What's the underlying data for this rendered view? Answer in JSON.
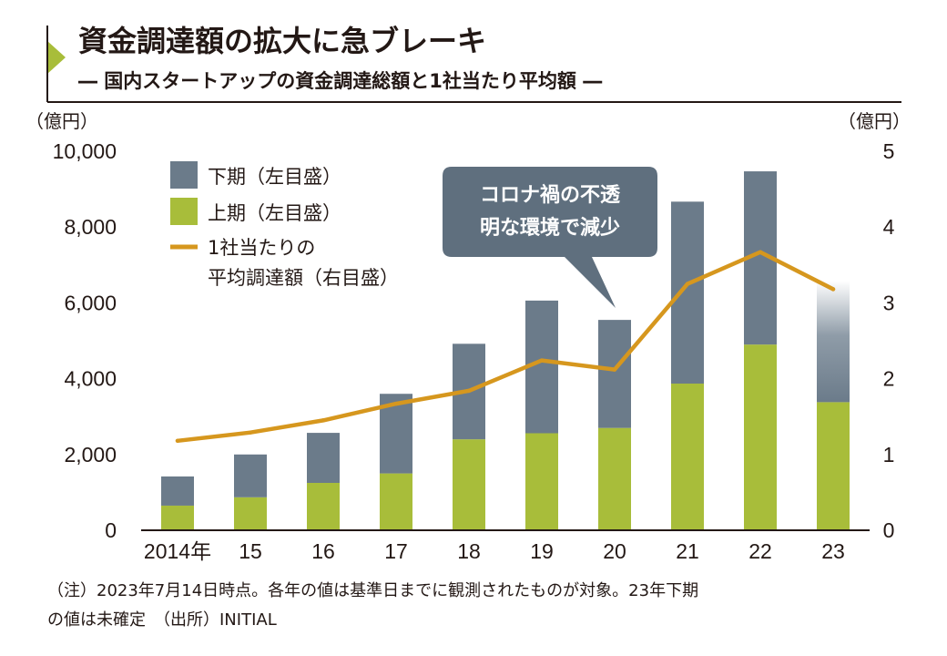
{
  "title": "資金調達額の拡大に急ブレーキ",
  "subtitle": "― 国内スタートアップの資金調達総額と1社当たり平均額 ―",
  "colors": {
    "lower_half": "#6b7b8a",
    "upper_half": "#a8bd3a",
    "line": "#d6971e",
    "callout": "#5f6f7e",
    "accent_triangle": "#a8bd3a"
  },
  "chart_data": {
    "type": "bar",
    "categories": [
      "2014年",
      "15",
      "16",
      "17",
      "18",
      "19",
      "20",
      "21",
      "22",
      "23"
    ],
    "series": [
      {
        "name": "上期（左目盛）",
        "values": [
          650,
          870,
          1250,
          1500,
          2400,
          2560,
          2700,
          3870,
          4900,
          3380
        ]
      },
      {
        "name": "下期（左目盛）",
        "values": [
          770,
          1130,
          1320,
          2100,
          2520,
          3500,
          2850,
          4800,
          4570,
          3200
        ]
      }
    ],
    "line_series": {
      "name": "1社当たりの平均調達額（右目盛）",
      "values": [
        1.18,
        1.29,
        1.45,
        1.67,
        1.84,
        2.24,
        2.12,
        3.25,
        3.67,
        3.18
      ]
    },
    "y_left": {
      "unit": "（億円）",
      "ylim": [
        0,
        10000
      ],
      "ticks": [
        "0",
        "2,000",
        "4,000",
        "6,000",
        "8,000",
        "10,000"
      ]
    },
    "y_right": {
      "unit": "（億円）",
      "ylim": [
        0,
        5
      ],
      "ticks": [
        "0",
        "1",
        "2",
        "3",
        "4",
        "5"
      ]
    },
    "legend": {
      "placement": "top-left",
      "items": [
        "下期（左目盛）",
        "上期（左目盛）",
        "1社当たりの",
        "平均調達額（右目盛）"
      ]
    },
    "annotation": {
      "lines": [
        "コロナ禍の不透",
        "明な環境で減少"
      ],
      "points_to": "20"
    },
    "last_bar_lower_half_fades": true,
    "grid": false
  },
  "note_lines": [
    "（注）2023年7月14日時点。各年の値は基準日までに観測されたものが対象。23年下期",
    "の値は未確定　（出所）INITIAL"
  ]
}
